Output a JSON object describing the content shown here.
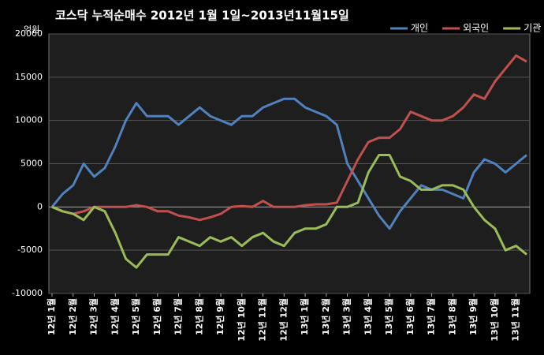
{
  "chart_data": {
    "type": "line",
    "title": "코스닥  누적순매수 2012년 1월 1일~2013년11월15일",
    "y_label": "억원",
    "categories": [
      "12년 1월",
      null,
      "12년 2월",
      null,
      "12년 3월",
      null,
      "12년 4월",
      null,
      "12년 5월",
      null,
      "12년 6월",
      null,
      "12년 7월",
      null,
      "12년 8월",
      null,
      "12년 9월",
      null,
      "12년 10월",
      null,
      "12년 11월",
      null,
      "12년 12월",
      null,
      "13년 1월",
      null,
      "13년 2월",
      null,
      "13년 3월",
      null,
      "13년 4월",
      null,
      "13년 5월",
      null,
      "13년 6월",
      null,
      "13년 7월",
      null,
      "13년 8월",
      null,
      "13년 9월",
      null,
      "13년 10월",
      null,
      "13년 11월",
      null
    ],
    "series": [
      {
        "name": "개인",
        "color": "#4f81bd",
        "values": [
          0,
          1500,
          2500,
          5000,
          3500,
          4500,
          7000,
          10000,
          12000,
          10500,
          10500,
          10500,
          9500,
          10500,
          11500,
          10500,
          10000,
          9500,
          10500,
          10500,
          11500,
          12000,
          12500,
          12500,
          11500,
          11000,
          10500,
          9500,
          5000,
          3000,
          1000,
          -1000,
          -2500,
          -500,
          1000,
          2500,
          2000,
          2000,
          1500,
          1000,
          4000,
          5500,
          5000,
          4000,
          5000,
          6000
        ]
      },
      {
        "name": "외국인",
        "color": "#c0504d",
        "values": [
          0,
          -500,
          -800,
          -500,
          0,
          0,
          0,
          0,
          200,
          0,
          -500,
          -500,
          -1000,
          -1200,
          -1500,
          -1200,
          -800,
          0,
          100,
          0,
          700,
          0,
          0,
          0,
          200,
          300,
          300,
          500,
          3000,
          5500,
          7500,
          8000,
          8000,
          9000,
          11000,
          10500,
          10000,
          10000,
          10500,
          11500,
          13000,
          12500,
          14500,
          16000,
          17500,
          16800
        ]
      },
      {
        "name": "기관",
        "color": "#9bbb59",
        "values": [
          0,
          -500,
          -800,
          -1500,
          0,
          -500,
          -3000,
          -6000,
          -7000,
          -5500,
          -5500,
          -5500,
          -3500,
          -4000,
          -4500,
          -3500,
          -4000,
          -3500,
          -4500,
          -3500,
          -3000,
          -4000,
          -4500,
          -3000,
          -2500,
          -2500,
          -2000,
          0,
          0,
          500,
          4000,
          6000,
          6000,
          3500,
          3000,
          2000,
          2000,
          2500,
          2500,
          2000,
          0,
          -1500,
          -2500,
          -5000,
          -4500,
          -5500
        ]
      }
    ],
    "ylim": [
      -10000,
      20000
    ],
    "yticks": [
      -10000,
      -5000,
      0,
      5000,
      10000,
      15000,
      20000
    ],
    "grid": true,
    "legend": "top-right"
  }
}
